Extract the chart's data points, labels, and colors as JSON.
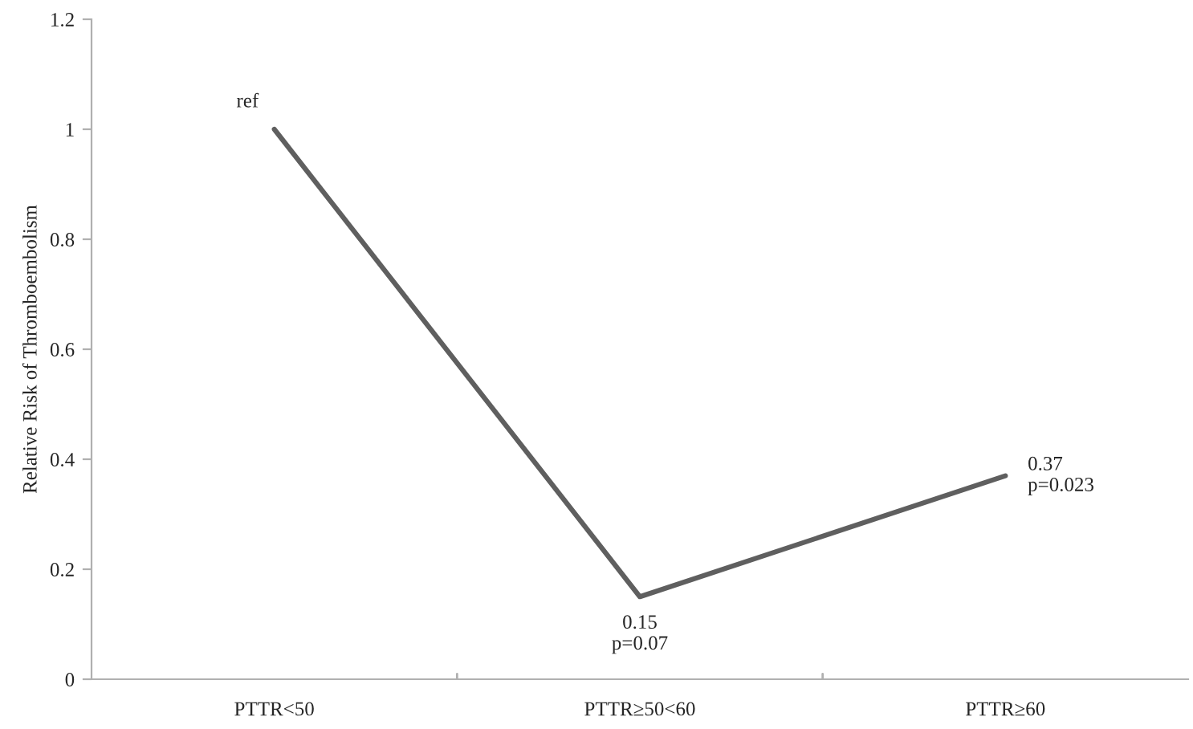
{
  "chart_data": {
    "type": "line",
    "ylabel": "Relative Risk of Thromboembolism",
    "categories": [
      "PTTR<50",
      "PTTR≥50<60",
      "PTTR≥60"
    ],
    "series": [
      {
        "color": "#5f5f5f",
        "values": [
          1,
          0.15,
          0.37
        ],
        "value_labels": [
          "ref",
          "0.15\np=0.07",
          "0.37\np=0.023"
        ]
      }
    ],
    "ylim": [
      0,
      1.2
    ],
    "yticks": [
      0,
      0.2,
      0.4,
      0.6,
      0.8,
      1,
      1.2
    ],
    "grid": false,
    "legend": false,
    "marker": "none",
    "line_style": "solid"
  }
}
